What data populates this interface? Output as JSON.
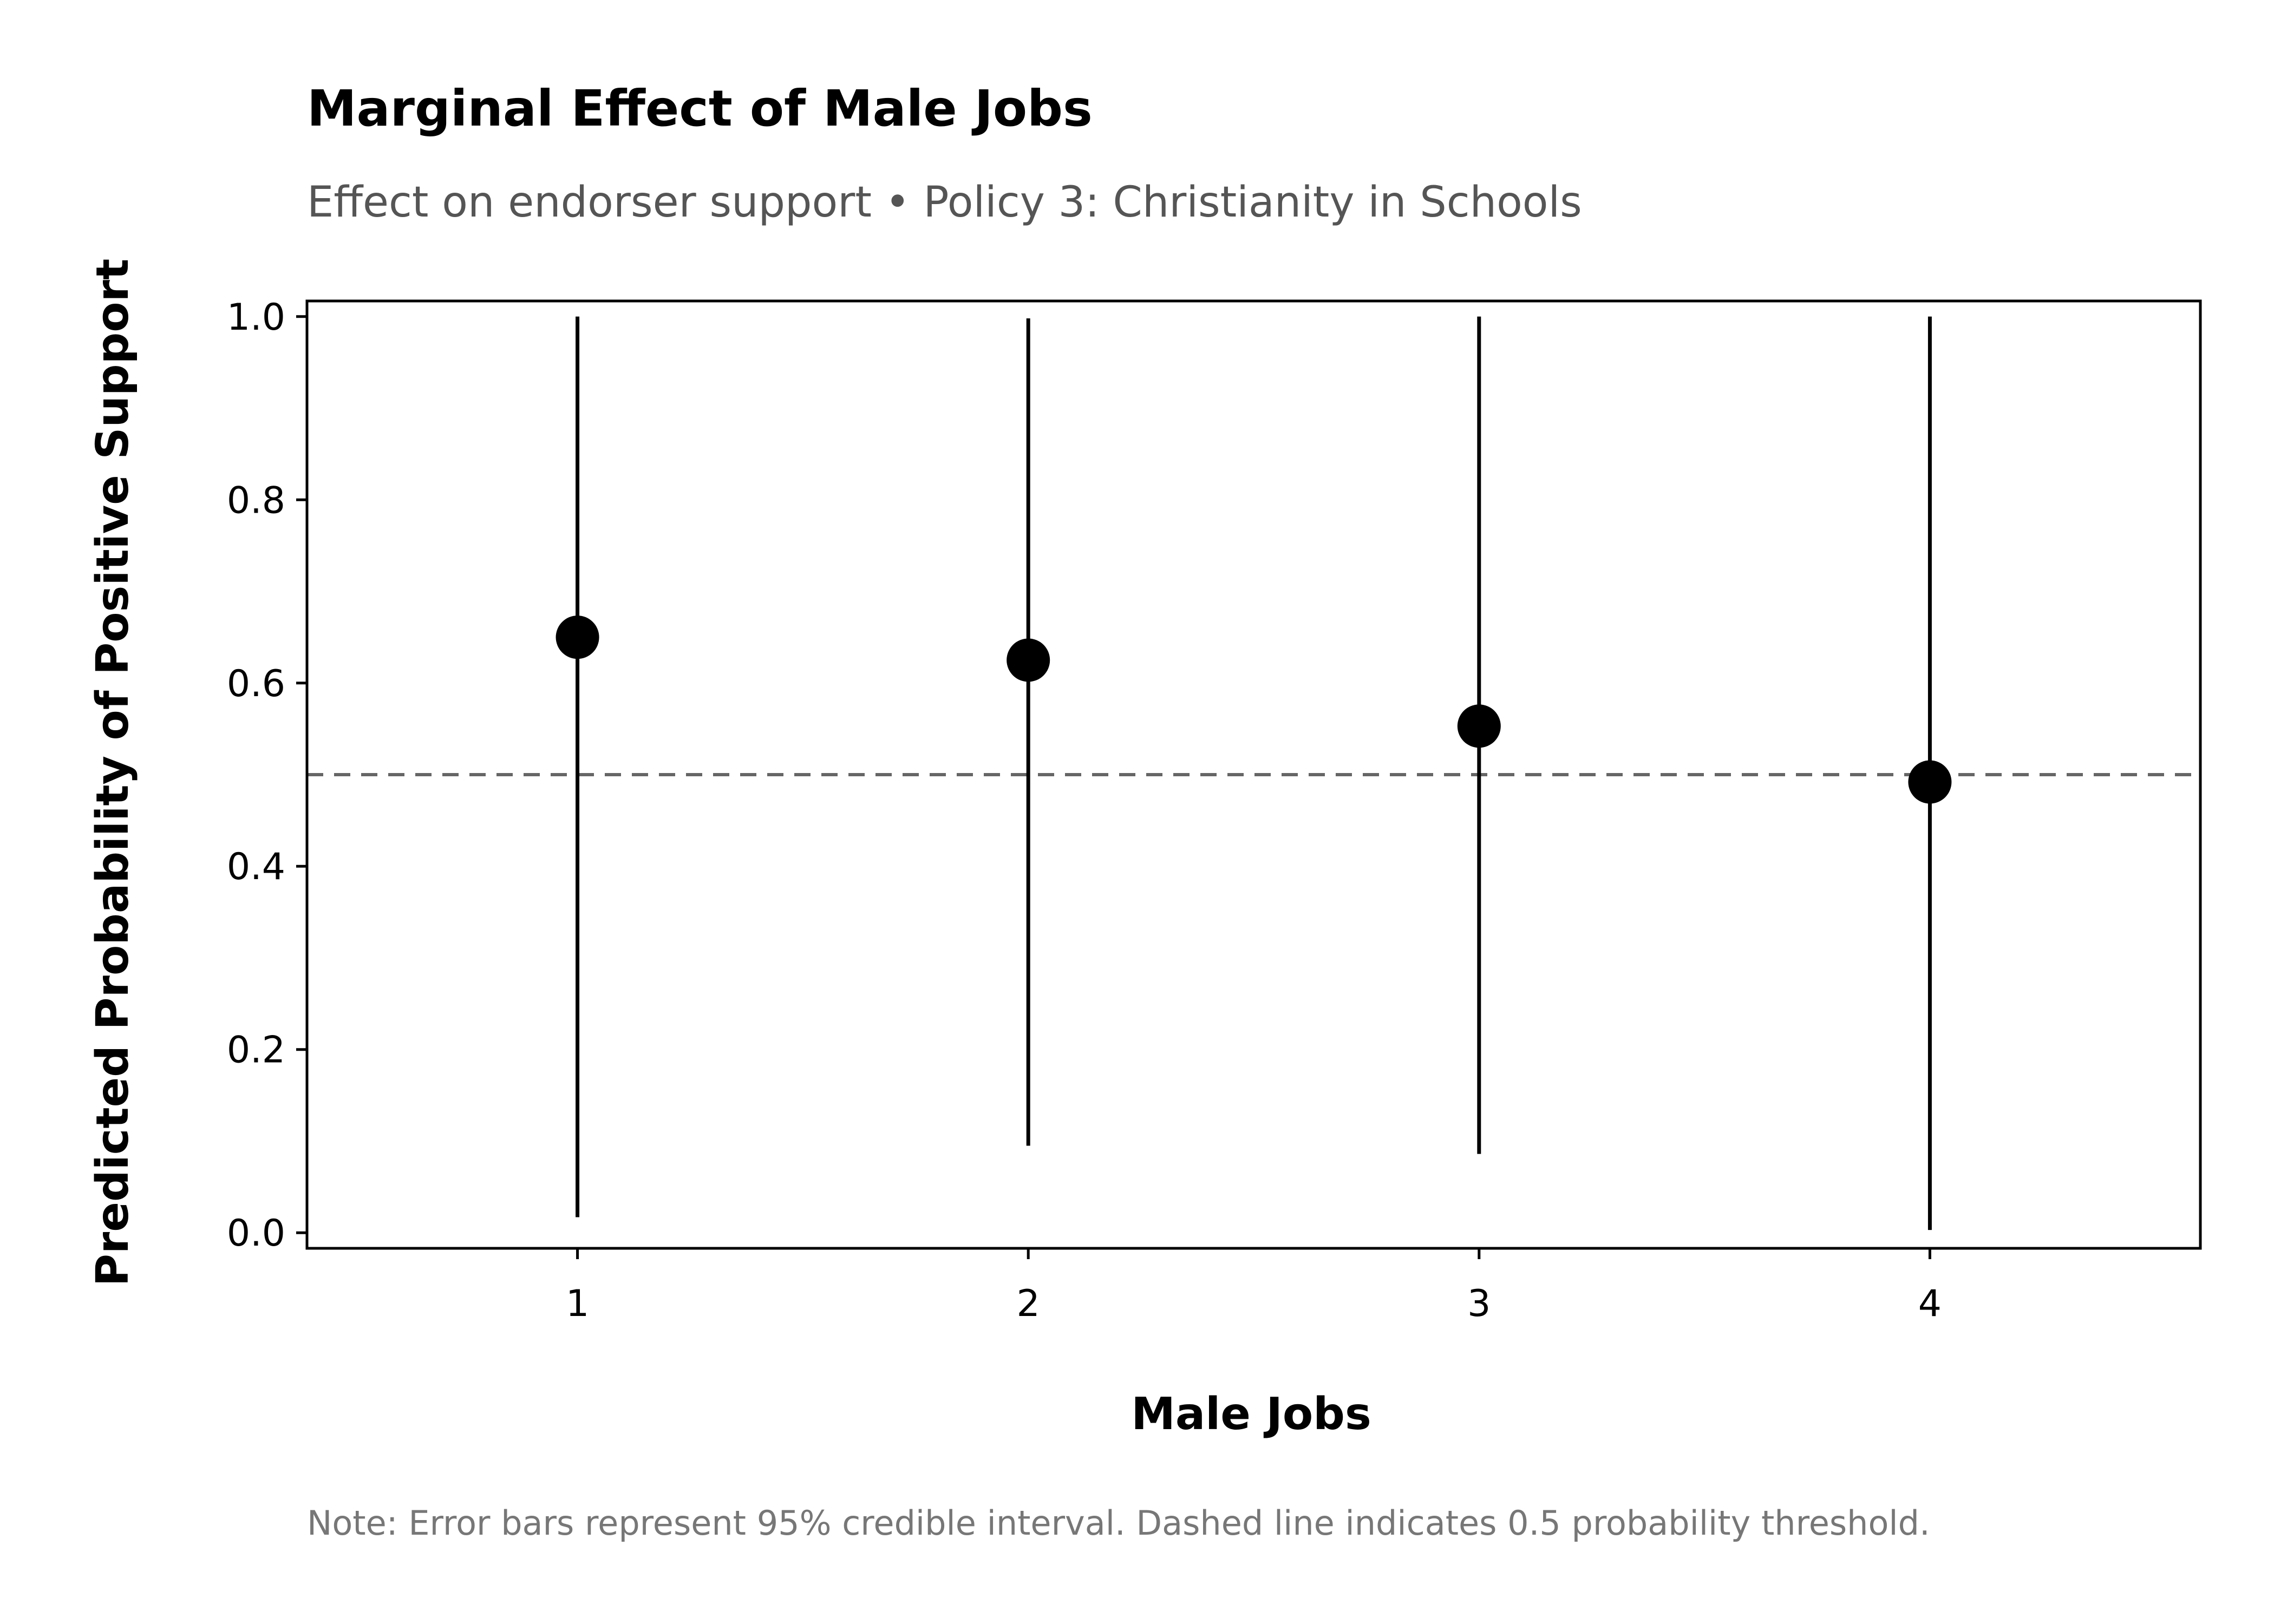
{
  "chart_data": {
    "type": "scatter",
    "title": "Marginal Effect of Male Jobs",
    "subtitle": "Effect on endorser support • Policy 3: Christianity in Schools",
    "xlabel": "Male Jobs",
    "ylabel": "Predicted Probability of Positive Support",
    "note": "Note: Error bars represent 95% credible interval. Dashed line indicates 0.5 probability threshold.",
    "xlim": [
      0.4,
      4.6
    ],
    "ylim": [
      -0.017,
      1.017
    ],
    "x_ticks": [
      1,
      2,
      3,
      4
    ],
    "x_tick_labels": [
      "1",
      "2",
      "3",
      "4"
    ],
    "y_ticks": [
      0.0,
      0.2,
      0.4,
      0.6,
      0.8,
      1.0
    ],
    "y_tick_labels": [
      "0.0",
      "0.2",
      "0.4",
      "0.6",
      "0.8",
      "1.0"
    ],
    "reference_line": {
      "y": 0.5,
      "style": "dashed",
      "color": "#666666"
    },
    "grid": false,
    "points": [
      {
        "x": 1,
        "y": 0.65,
        "lower": 0.017,
        "upper": 1.0
      },
      {
        "x": 2,
        "y": 0.625,
        "lower": 0.095,
        "upper": 0.998
      },
      {
        "x": 3,
        "y": 0.553,
        "lower": 0.086,
        "upper": 1.0
      },
      {
        "x": 4,
        "y": 0.492,
        "lower": 0.003,
        "upper": 1.0
      }
    ],
    "colors": {
      "point": "#000000",
      "errorbar": "#000000",
      "axis": "#000000"
    }
  }
}
